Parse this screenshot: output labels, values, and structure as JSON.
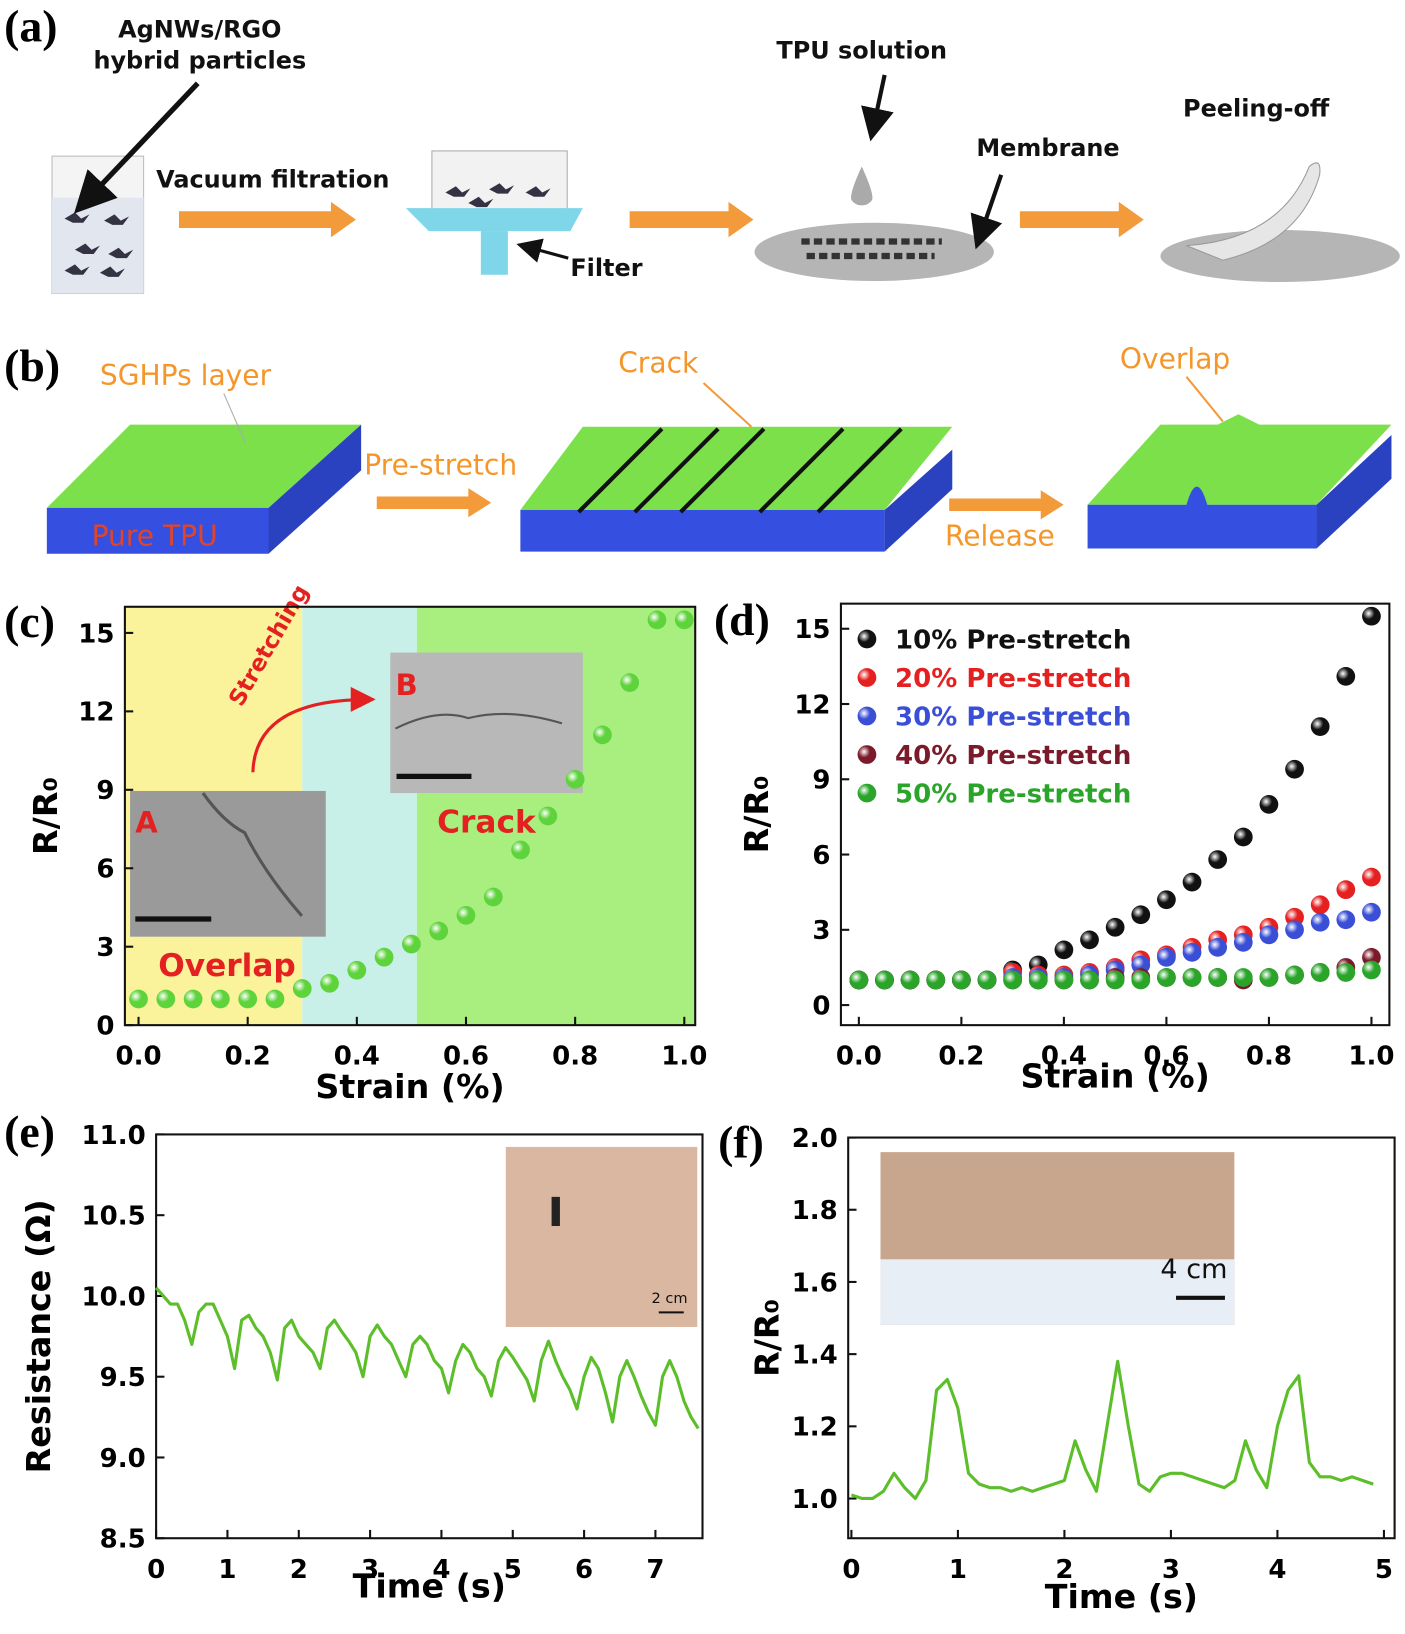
{
  "diagram_a": {
    "panel_label": "(a)",
    "particles_label": [
      "AgNWs/RGO",
      "hybrid particles"
    ],
    "step1": "Vacuum filtration",
    "filter": "Filter",
    "solution": "TPU solution",
    "membrane": "Membrane",
    "peel": "Peeling-off"
  },
  "diagram_b": {
    "panel_label": "(b)",
    "layer": "SGHPs layer",
    "substrate": "Pure TPU",
    "step1": "Pre-stretch",
    "crack": "Crack",
    "step2": "Release",
    "overlap": "Overlap"
  },
  "chart_data": [
    {
      "type": "scatter",
      "panel_label": "(c)",
      "x_label": "Strain (%)",
      "y_label": "R/R₀",
      "x": [
        0,
        0.05,
        0.1,
        0.15,
        0.2,
        0.25,
        0.3,
        0.35,
        0.4,
        0.45,
        0.5,
        0.55,
        0.6,
        0.65,
        0.7,
        0.75,
        0.8,
        0.85,
        0.9,
        0.95,
        1.0
      ],
      "values": [
        1,
        1,
        1,
        1,
        1,
        1,
        1.4,
        1.6,
        2.1,
        2.6,
        3.1,
        3.6,
        4.2,
        4.9,
        6.7,
        8.0,
        9.4,
        11.1,
        13.1,
        15.5,
        15.5
      ],
      "color": "#5fd33c",
      "xlim": [
        -0.025,
        1.02
      ],
      "ylim": [
        0,
        16
      ],
      "xticks": [
        {
          "value": 0,
          "label": "0.0"
        },
        0.2,
        0.4,
        0.6,
        0.8,
        {
          "value": 1,
          "label": "1.0"
        }
      ],
      "yticks": [
        0,
        3,
        6,
        9,
        12,
        15
      ],
      "regions": [
        {
          "start": -0.025,
          "end": 0.3,
          "color": "#fbf29c"
        },
        {
          "start": 0.3,
          "end": 0.51,
          "color": "#c8f0e8"
        },
        {
          "start": 0.51,
          "end": 1.02,
          "color": "#a8ef80"
        }
      ],
      "annotations": [
        "Stretching",
        "A",
        "B",
        "Crack",
        "Overlap"
      ]
    },
    {
      "type": "scatter",
      "panel_label": "(d)",
      "x_label": "Strain (%)",
      "y_label": "R/R₀",
      "legend": "upper left",
      "x": [
        0,
        0.05,
        0.1,
        0.15,
        0.2,
        0.25,
        0.3,
        0.35,
        0.4,
        0.45,
        0.5,
        0.55,
        0.6,
        0.65,
        0.7,
        0.75,
        0.8,
        0.85,
        0.9,
        0.95,
        1.0
      ],
      "series": [
        {
          "name": "10% Pre-stretch",
          "color": "#111111",
          "values": [
            1,
            1,
            1,
            1,
            1,
            1,
            1.4,
            1.6,
            2.2,
            2.6,
            3.1,
            3.6,
            4.2,
            4.9,
            5.8,
            6.7,
            8.0,
            9.4,
            11.1,
            13.1,
            15.5
          ]
        },
        {
          "name": "20% Pre-stretch",
          "color": "#e52020",
          "values": [
            1,
            1,
            1,
            1,
            1,
            1,
            1.3,
            1.2,
            1.2,
            1.3,
            1.5,
            1.8,
            2.0,
            2.3,
            2.6,
            2.8,
            3.1,
            3.5,
            4.0,
            4.6,
            5.1
          ]
        },
        {
          "name": "30% Pre-stretch",
          "color": "#3a4fd6",
          "values": [
            1,
            1,
            1,
            1,
            1,
            1,
            1.1,
            1.1,
            1.1,
            1.2,
            1.4,
            1.6,
            1.9,
            2.1,
            2.3,
            2.5,
            2.8,
            3.0,
            3.3,
            3.4,
            3.7
          ]
        },
        {
          "name": "40% Pre-stretch",
          "color": "#7a1a2a",
          "values": [
            1,
            1,
            1,
            1,
            1,
            1,
            1,
            1,
            1,
            1,
            1.1,
            1.1,
            1.1,
            1.1,
            1.1,
            1.0,
            1.1,
            1.2,
            1.3,
            1.5,
            1.9
          ]
        },
        {
          "name": "50% Pre-stretch",
          "color": "#2aa52a",
          "values": [
            1,
            1,
            1,
            1,
            1,
            1,
            1,
            1,
            1,
            1,
            1,
            1,
            1.1,
            1.1,
            1.1,
            1.1,
            1.1,
            1.2,
            1.3,
            1.3,
            1.4
          ]
        }
      ],
      "xlim": [
        -0.035,
        1.035
      ],
      "ylim": [
        -0.8,
        16
      ],
      "xticks": [
        {
          "value": 0,
          "label": "0.0"
        },
        0.2,
        0.4,
        0.6,
        0.8,
        {
          "value": 1,
          "label": "1.0"
        }
      ],
      "yticks": [
        0,
        3,
        6,
        9,
        12,
        15
      ]
    },
    {
      "type": "line",
      "panel_label": "(e)",
      "x_label": "Time (s)",
      "y_label": "Resistance (Ω)",
      "color": "#5cbf2a",
      "x": [
        0,
        0.1,
        0.2,
        0.3,
        0.4,
        0.5,
        0.6,
        0.7,
        0.8,
        0.9,
        1.0,
        1.1,
        1.2,
        1.3,
        1.4,
        1.5,
        1.6,
        1.7,
        1.8,
        1.9,
        2.0,
        2.1,
        2.2,
        2.3,
        2.4,
        2.5,
        2.6,
        2.7,
        2.8,
        2.9,
        3.0,
        3.1,
        3.2,
        3.3,
        3.4,
        3.5,
        3.6,
        3.7,
        3.8,
        3.9,
        4.0,
        4.1,
        4.2,
        4.3,
        4.4,
        4.5,
        4.6,
        4.7,
        4.8,
        4.9,
        5.0,
        5.1,
        5.2,
        5.3,
        5.4,
        5.5,
        5.6,
        5.7,
        5.8,
        5.9,
        6.0,
        6.1,
        6.2,
        6.3,
        6.4,
        6.5,
        6.6,
        6.7,
        6.8,
        6.9,
        7.0,
        7.1,
        7.2,
        7.3,
        7.4,
        7.5,
        7.6
      ],
      "values": [
        10.05,
        10.0,
        9.95,
        9.95,
        9.85,
        9.7,
        9.9,
        9.95,
        9.95,
        9.85,
        9.75,
        9.55,
        9.85,
        9.88,
        9.8,
        9.75,
        9.65,
        9.48,
        9.8,
        9.85,
        9.75,
        9.7,
        9.65,
        9.55,
        9.8,
        9.85,
        9.78,
        9.72,
        9.65,
        9.5,
        9.75,
        9.82,
        9.75,
        9.7,
        9.6,
        9.5,
        9.7,
        9.75,
        9.7,
        9.6,
        9.55,
        9.4,
        9.6,
        9.7,
        9.65,
        9.55,
        9.5,
        9.38,
        9.6,
        9.68,
        9.62,
        9.55,
        9.48,
        9.35,
        9.6,
        9.72,
        9.6,
        9.5,
        9.42,
        9.3,
        9.5,
        9.62,
        9.55,
        9.4,
        9.22,
        9.5,
        9.6,
        9.5,
        9.38,
        9.28,
        9.2,
        9.5,
        9.6,
        9.5,
        9.35,
        9.25,
        9.18
      ],
      "xlim": [
        0,
        7.66
      ],
      "ylim": [
        8.5,
        11
      ],
      "xticks": [
        0,
        1,
        2,
        3,
        4,
        5,
        6,
        7
      ],
      "yticks": [
        8.5,
        {
          "value": 9,
          "label": "9.0"
        },
        9.5,
        {
          "value": 10,
          "label": "10.0"
        },
        10.5,
        {
          "value": 11,
          "label": "11.0"
        }
      ],
      "annotations": [
        "2 cm"
      ]
    },
    {
      "type": "line",
      "panel_label": "(f)",
      "x_label": "Time (s)",
      "y_label": "R/R₀",
      "color": "#5cbf2a",
      "x": [
        0,
        0.1,
        0.2,
        0.3,
        0.4,
        0.5,
        0.6,
        0.7,
        0.8,
        0.9,
        1.0,
        1.1,
        1.2,
        1.3,
        1.4,
        1.5,
        1.6,
        1.7,
        1.8,
        1.9,
        2.0,
        2.1,
        2.2,
        2.3,
        2.4,
        2.5,
        2.6,
        2.7,
        2.8,
        2.9,
        3.0,
        3.1,
        3.2,
        3.3,
        3.4,
        3.5,
        3.6,
        3.7,
        3.8,
        3.9,
        4.0,
        4.1,
        4.2,
        4.3,
        4.4,
        4.5,
        4.6,
        4.7,
        4.8,
        4.9
      ],
      "values": [
        1.01,
        1.0,
        1.0,
        1.02,
        1.07,
        1.03,
        1.0,
        1.05,
        1.3,
        1.33,
        1.25,
        1.07,
        1.04,
        1.03,
        1.03,
        1.02,
        1.03,
        1.02,
        1.03,
        1.04,
        1.05,
        1.16,
        1.08,
        1.02,
        1.2,
        1.38,
        1.2,
        1.04,
        1.02,
        1.06,
        1.07,
        1.07,
        1.06,
        1.05,
        1.04,
        1.03,
        1.05,
        1.16,
        1.08,
        1.03,
        1.2,
        1.3,
        1.34,
        1.1,
        1.06,
        1.06,
        1.05,
        1.06,
        1.05,
        1.04
      ],
      "xlim": [
        -0.03,
        5.1
      ],
      "ylim": [
        0.89,
        2.0
      ],
      "xticks": [
        0,
        1,
        2,
        3,
        4,
        5
      ],
      "yticks": [
        {
          "value": 1,
          "label": "1.0"
        },
        1.2,
        1.4,
        1.6,
        1.8,
        {
          "value": 2,
          "label": "2.0"
        }
      ],
      "annotations": [
        "4 cm"
      ]
    }
  ]
}
